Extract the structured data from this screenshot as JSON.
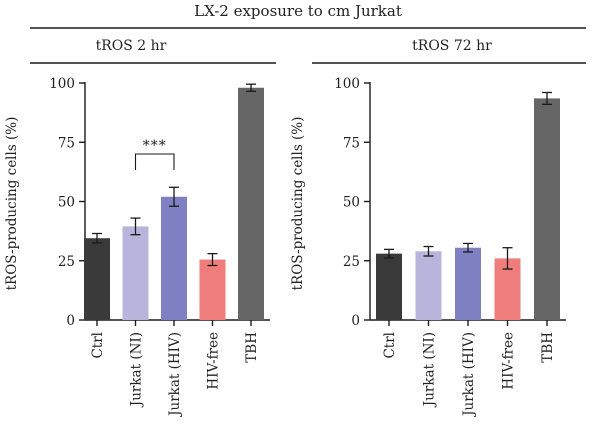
{
  "figure_title": "LX-2 exposure to cm Jurkat",
  "chart_data": [
    {
      "type": "bar",
      "title": "tROS 2 hr",
      "ylabel": "tROS-producing cells (%)",
      "xlabel": "",
      "ylim": [
        0,
        100
      ],
      "yticks": [
        0,
        25,
        50,
        75,
        100
      ],
      "grid": false,
      "categories": [
        "Ctrl",
        "Jurkat (NI)",
        "Jurkat (HIV)",
        "HIV-free",
        "TBH"
      ],
      "values": [
        34.5,
        39.5,
        52,
        25.5,
        98
      ],
      "errors": [
        2,
        3.5,
        4,
        2.5,
        1.5
      ],
      "colors": [
        "#3a3a3a",
        "#b7b5dc",
        "#7e80c2",
        "#ef7d7b",
        "#666666"
      ],
      "significance": [
        {
          "from": 1,
          "to": 2,
          "label": "***"
        }
      ]
    },
    {
      "type": "bar",
      "title": "tROS 72 hr",
      "ylabel": "tROS-producing cells (%)",
      "xlabel": "",
      "ylim": [
        0,
        100
      ],
      "yticks": [
        0,
        25,
        50,
        75,
        100
      ],
      "grid": false,
      "categories": [
        "Ctrl",
        "Jurkat (NI)",
        "Jurkat (HIV)",
        "HIV-free",
        "TBH"
      ],
      "values": [
        28,
        29,
        30.5,
        26,
        93.5
      ],
      "errors": [
        1.8,
        2,
        1.8,
        4.5,
        2.5
      ],
      "colors": [
        "#3a3a3a",
        "#b7b5dc",
        "#7e80c2",
        "#ef7d7b",
        "#666666"
      ],
      "significance": []
    }
  ]
}
